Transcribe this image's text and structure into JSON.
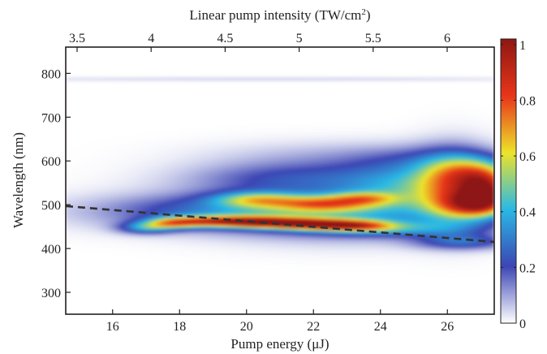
{
  "chart_data": {
    "type": "heatmap",
    "top_axis": {
      "label_main": "Linear pump intensity (TW/cm",
      "label_sup": "2",
      "label_end": ")",
      "ticks": [
        "3.5",
        "4",
        "4.5",
        "5",
        "5.5",
        "6"
      ],
      "tick_values": [
        3.5,
        4,
        4.5,
        5,
        5.5,
        6
      ]
    },
    "xlabel": "Pump energy (μJ)",
    "ylabel": "Wavelength (nm)",
    "xlim": [
      14.6,
      27.4
    ],
    "ylim": [
      250,
      860
    ],
    "xticks": [
      "16",
      "18",
      "20",
      "22",
      "24",
      "26"
    ],
    "xtick_values": [
      16,
      18,
      20,
      22,
      24,
      26
    ],
    "yticks": [
      "300",
      "400",
      "500",
      "600",
      "700",
      "800"
    ],
    "ytick_values": [
      300,
      400,
      500,
      600,
      700,
      800
    ],
    "colorbar": {
      "ticks": [
        "0",
        "0.2",
        "0.4",
        "0.6",
        "0.8",
        "1"
      ],
      "tick_values": [
        0,
        0.2,
        0.4,
        0.6,
        0.8,
        1
      ],
      "range": [
        0,
        1.02
      ],
      "colormap": [
        "#ffffff",
        "#3c46b4",
        "#2ab8e6",
        "#ede32a",
        "#e8351a",
        "#8e1712"
      ]
    },
    "dashed_line": {
      "x": [
        14.6,
        27.4
      ],
      "y": [
        497,
        415
      ],
      "color": "#333333"
    },
    "heatmap_blobs": [
      {
        "x": 17.0,
        "y": 447,
        "sx": 0.55,
        "sy": 9,
        "v": 0.3
      },
      {
        "x": 17.8,
        "y": 458,
        "sx": 0.6,
        "sy": 9,
        "v": 0.42
      },
      {
        "x": 19.0,
        "y": 462,
        "sx": 0.9,
        "sy": 9,
        "v": 0.5
      },
      {
        "x": 20.5,
        "y": 460,
        "sx": 0.9,
        "sy": 9,
        "v": 0.58
      },
      {
        "x": 22.0,
        "y": 455,
        "sx": 0.9,
        "sy": 9,
        "v": 0.55
      },
      {
        "x": 23.3,
        "y": 452,
        "sx": 0.8,
        "sy": 9,
        "v": 0.42
      },
      {
        "x": 19.5,
        "y": 485,
        "sx": 2.8,
        "sy": 28,
        "v": 0.25
      },
      {
        "x": 23.0,
        "y": 480,
        "sx": 2.6,
        "sy": 38,
        "v": 0.26
      },
      {
        "x": 20.3,
        "y": 512,
        "sx": 0.9,
        "sy": 12,
        "v": 0.36
      },
      {
        "x": 22.3,
        "y": 502,
        "sx": 1.0,
        "sy": 12,
        "v": 0.4
      },
      {
        "x": 23.5,
        "y": 515,
        "sx": 0.7,
        "sy": 10,
        "v": 0.3
      },
      {
        "x": 21.5,
        "y": 560,
        "sx": 2.2,
        "sy": 25,
        "v": 0.2
      },
      {
        "x": 24.8,
        "y": 540,
        "sx": 1.3,
        "sy": 35,
        "v": 0.27
      },
      {
        "x": 26.2,
        "y": 535,
        "sx": 0.8,
        "sy": 55,
        "v": 0.45
      },
      {
        "x": 27.2,
        "y": 530,
        "sx": 0.55,
        "sy": 32,
        "v": 0.65
      },
      {
        "x": 26.8,
        "y": 500,
        "sx": 0.7,
        "sy": 20,
        "v": 0.4
      },
      {
        "x": 26.8,
        "y": 575,
        "sx": 0.9,
        "sy": 25,
        "v": 0.3
      },
      {
        "x": 24.5,
        "y": 445,
        "sx": 1.6,
        "sy": 12,
        "v": 0.22
      },
      {
        "x": 26.5,
        "y": 415,
        "sx": 1.0,
        "sy": 12,
        "v": 0.22
      },
      {
        "x": 25.2,
        "y": 600,
        "sx": 1.5,
        "sy": 25,
        "v": 0.1
      },
      {
        "x": 22.5,
        "y": 610,
        "sx": 2.5,
        "sy": 25,
        "v": 0.07
      },
      {
        "x": 20.5,
        "y": 787,
        "sx": 7.0,
        "sy": 3,
        "v": 0.05
      }
    ]
  }
}
